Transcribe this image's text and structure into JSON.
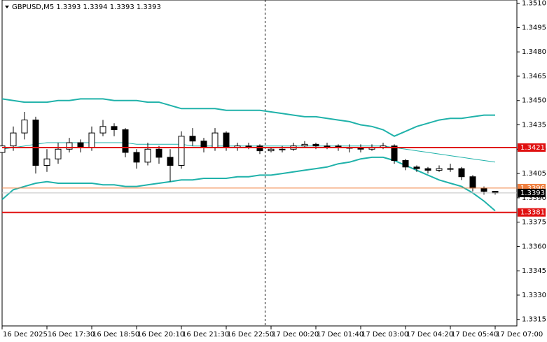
{
  "chart_data": {
    "type": "candlestick",
    "title": "GBPUSD,M5  1.3393 1.3394 1.3393 1.3393",
    "categories": [
      null,
      null,
      null,
      null,
      null,
      null,
      null,
      null,
      null,
      null,
      null,
      null,
      null,
      null,
      null,
      null,
      null,
      null,
      null,
      null,
      null,
      null,
      null,
      null,
      null,
      null,
      null,
      null,
      null,
      null,
      null,
      null,
      null,
      null,
      null,
      null,
      null,
      null,
      null,
      null,
      null,
      null,
      null,
      null,
      null
    ],
    "open": [
      1.3418,
      1.3422,
      1.343,
      1.3438,
      1.341,
      1.3414,
      1.342,
      1.3424,
      1.3421,
      1.343,
      1.3434,
      1.3432,
      1.3418,
      1.3412,
      1.342,
      1.3415,
      1.341,
      1.3428,
      1.3425,
      1.3421,
      1.343,
      1.3421,
      1.3422,
      1.3422,
      1.3419,
      1.342,
      1.342,
      1.3422,
      1.3423,
      1.3422,
      1.3422,
      1.3421,
      1.3421,
      1.342,
      1.3421,
      1.3422,
      1.3413,
      1.3409,
      1.3408,
      1.3407,
      1.3408,
      1.3408,
      1.3403,
      1.3396,
      1.3394
    ],
    "high": [
      1.3426,
      1.3434,
      1.3443,
      1.344,
      1.342,
      1.3424,
      1.3427,
      1.3426,
      1.3434,
      1.3438,
      1.3436,
      1.3433,
      1.342,
      1.3424,
      1.3422,
      1.342,
      1.3431,
      1.3433,
      1.3427,
      1.3433,
      1.3431,
      1.3424,
      1.3424,
      1.3423,
      1.3421,
      1.3422,
      1.3424,
      1.3425,
      1.3424,
      1.3424,
      1.3423,
      1.3423,
      1.3423,
      1.3423,
      1.3424,
      1.3423,
      1.3414,
      1.341,
      1.3409,
      1.341,
      1.3411,
      1.3409,
      1.3404,
      1.3397,
      1.3394
    ],
    "low": [
      1.3414,
      1.3419,
      1.3426,
      1.3405,
      1.3406,
      1.3411,
      1.3418,
      1.3418,
      1.3419,
      1.3428,
      1.3428,
      1.3415,
      1.3408,
      1.341,
      1.3411,
      1.34,
      1.3408,
      1.3422,
      1.3418,
      1.3419,
      1.3419,
      1.3419,
      1.342,
      1.3417,
      1.3418,
      1.3418,
      1.3419,
      1.3421,
      1.342,
      1.342,
      1.3419,
      1.3418,
      1.3418,
      1.3419,
      1.342,
      1.3411,
      1.3407,
      1.3406,
      1.3405,
      1.3406,
      1.3406,
      1.3401,
      1.3394,
      1.3392,
      1.3392
    ],
    "close": [
      1.3422,
      1.343,
      1.3438,
      1.341,
      1.3414,
      1.342,
      1.3424,
      1.3421,
      1.343,
      1.3434,
      1.3432,
      1.3418,
      1.3412,
      1.342,
      1.3415,
      1.341,
      1.3428,
      1.3425,
      1.3421,
      1.343,
      1.3421,
      1.3422,
      1.3422,
      1.3419,
      1.342,
      1.342,
      1.3422,
      1.3423,
      1.3422,
      1.3422,
      1.3421,
      1.3421,
      1.342,
      1.3421,
      1.3422,
      1.3413,
      1.3409,
      1.3408,
      1.3407,
      1.3408,
      1.3408,
      1.3403,
      1.3396,
      1.3394,
      1.3393
    ],
    "up_color": "#ffffff",
    "down_color": "#000000",
    "bands": {
      "color": "#20b2aa",
      "upper": [
        1.3451,
        1.345,
        1.3449,
        1.3449,
        1.3449,
        1.345,
        1.345,
        1.3451,
        1.3451,
        1.3451,
        1.345,
        1.345,
        1.345,
        1.3449,
        1.3449,
        1.3447,
        1.3445,
        1.3445,
        1.3445,
        1.3445,
        1.3444,
        1.3444,
        1.3444,
        1.3444,
        1.3443,
        1.3442,
        1.3441,
        1.344,
        1.344,
        1.3439,
        1.3438,
        1.3437,
        1.3435,
        1.3434,
        1.3432,
        1.3428,
        1.3431,
        1.3434,
        1.3436,
        1.3438,
        1.3439,
        1.3439,
        1.344,
        1.3441,
        1.3441
      ],
      "middle": [
        1.342,
        1.3421,
        1.3422,
        1.3423,
        1.3424,
        1.3424,
        1.3424,
        1.3424,
        1.3424,
        1.3424,
        1.3424,
        1.3424,
        1.3423,
        1.3423,
        1.3423,
        1.3423,
        1.3423,
        1.3422,
        1.3422,
        1.3422,
        1.3422,
        1.3422,
        1.3422,
        1.3422,
        1.3422,
        1.3422,
        1.3422,
        1.3422,
        1.3422,
        1.3422,
        1.3422,
        1.3422,
        1.3422,
        1.3422,
        1.3422,
        1.3421,
        1.342,
        1.3419,
        1.3418,
        1.3417,
        1.3416,
        1.3415,
        1.3414,
        1.3413,
        1.3412
      ],
      "lower": [
        1.3389,
        1.3395,
        1.3397,
        1.3399,
        1.34,
        1.3399,
        1.3399,
        1.3399,
        1.3399,
        1.3398,
        1.3398,
        1.3397,
        1.3397,
        1.3398,
        1.3399,
        1.34,
        1.3401,
        1.3401,
        1.3402,
        1.3402,
        1.3402,
        1.3403,
        1.3403,
        1.3404,
        1.3404,
        1.3405,
        1.3406,
        1.3407,
        1.3408,
        1.3409,
        1.3411,
        1.3412,
        1.3414,
        1.3415,
        1.3415,
        1.3413,
        1.341,
        1.3407,
        1.3404,
        1.3401,
        1.3399,
        1.3397,
        1.3393,
        1.3388,
        1.3382
      ]
    },
    "levels": [
      {
        "value": 1.3396,
        "color": "#f08040"
      },
      {
        "value": 1.3421,
        "color": "#e01010"
      },
      {
        "value": 1.3381,
        "color": "#e01010"
      }
    ],
    "price": 1.3393,
    "price_color": "#000000",
    "xlim": [
      0,
      45.9375
    ],
    "xticks": [
      {
        "value": 0,
        "label": "16 Dec 2025"
      },
      {
        "value": 4,
        "label": "16 Dec 17:30"
      },
      {
        "value": 8,
        "label": "16 Dec 18:50"
      },
      {
        "value": 12,
        "label": "16 Dec 20:10"
      },
      {
        "value": 16,
        "label": "16 Dec 21:30"
      },
      {
        "value": 20,
        "label": "16 Dec 22:50"
      },
      {
        "value": 24,
        "label": "17 Dec 00:20"
      },
      {
        "value": 28,
        "label": "17 Dec 01:40"
      },
      {
        "value": 32,
        "label": "17 Dec 03:00"
      },
      {
        "value": 36,
        "label": "17 Dec 04:20"
      },
      {
        "value": 40,
        "label": "17 Dec 05:40"
      },
      {
        "value": 44,
        "label": "17 Dec 07:00"
      }
    ],
    "ylim": [
      1.3311,
      1.3512
    ],
    "yticks": [
      {
        "value": 1.351,
        "label": "1.3510"
      },
      1.3495,
      {
        "value": 1.348,
        "label": "1.3480"
      },
      1.3465,
      {
        "value": 1.345,
        "label": "1.3450"
      },
      1.3435,
      {
        "value": 1.342,
        "label": "1.3420"
      },
      1.3405,
      {
        "value": 1.339,
        "label": "1.3390"
      },
      1.3375,
      {
        "value": 1.336,
        "label": "1.3360"
      },
      1.3345,
      {
        "value": 1.333,
        "label": "1.3330"
      },
      1.3315
    ]
  }
}
